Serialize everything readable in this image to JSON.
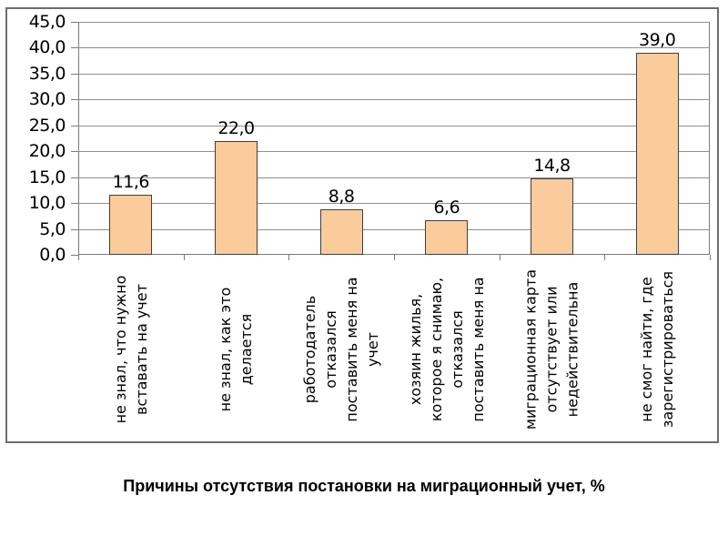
{
  "caption": "Причины отсутствия постановки на миграционный учет, %",
  "colors": {
    "bar_fill": "#FACB9B",
    "bar_border": "#3F3F3F",
    "gridline": "#8F8F8F",
    "axis": "#7A7A7A",
    "frame": "#6E6E6E",
    "text": "#000000",
    "background": "#FFFFFF"
  },
  "chart_data": {
    "type": "bar",
    "title": "Причины отсутствия постановки на миграционный учет, %",
    "xlabel": "",
    "ylabel": "",
    "ylim": [
      0,
      45
    ],
    "y_step": 5,
    "grid": true,
    "legend": "none",
    "decimal_separator": ",",
    "categories": [
      "не знал, что нужно вставать на учет",
      "не знал, как это делается",
      "работодатель отказался поставить меня на учет",
      "хозяин жилья, которое я снимаю, отказался поставить меня на",
      "миграционная карта отсутствует или недействительна",
      "не смог найти, где зарегистрироваться"
    ],
    "category_lines": [
      [
        "не знал, что нужно",
        "вставать на учет"
      ],
      [
        "не знал, как это",
        "делается"
      ],
      [
        "работодатель",
        "отказался",
        "поставить меня на",
        "учет"
      ],
      [
        "хозяин жилья,",
        "которое я снимаю,",
        "отказался",
        "поставить меня на"
      ],
      [
        "миграционная карта",
        "отсутствует или",
        "недействительна"
      ],
      [
        "не смог найти, где",
        "зарегистрироваться"
      ]
    ],
    "values": [
      11.6,
      22.0,
      8.8,
      6.6,
      14.8,
      39.0
    ],
    "value_labels": [
      "11,6",
      "22,0",
      "8,8",
      "6,6",
      "14,8",
      "39,0"
    ],
    "y_ticks": [
      "45,0",
      "40,0",
      "35,0",
      "30,0",
      "25,0",
      "20,0",
      "15,0",
      "10,0",
      "5,0",
      "0,0"
    ]
  }
}
